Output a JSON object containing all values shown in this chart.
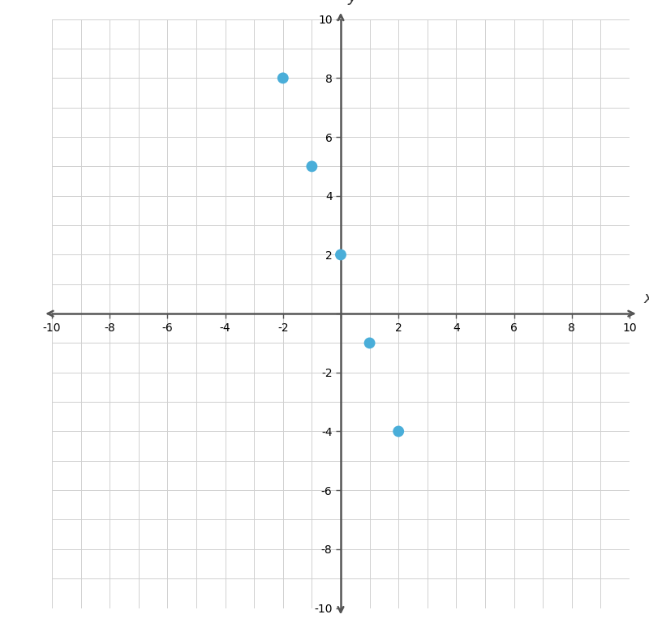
{
  "x": [
    -2,
    -1,
    0,
    1,
    2
  ],
  "y": [
    8,
    5,
    2,
    -1,
    -4
  ],
  "point_color": "#4aaed9",
  "point_size": 100,
  "xlim": [
    -10,
    10
  ],
  "ylim": [
    -10,
    10
  ],
  "xlabel": "x",
  "ylabel": "y",
  "tick_step": 2,
  "minor_tick_step": 1,
  "grid_color": "#d0d0d0",
  "grid_linewidth": 0.7,
  "axis_color": "#555555",
  "background_color": "#ffffff",
  "label_fontsize": 14,
  "tick_fontsize": 12,
  "axis_linewidth": 1.8
}
